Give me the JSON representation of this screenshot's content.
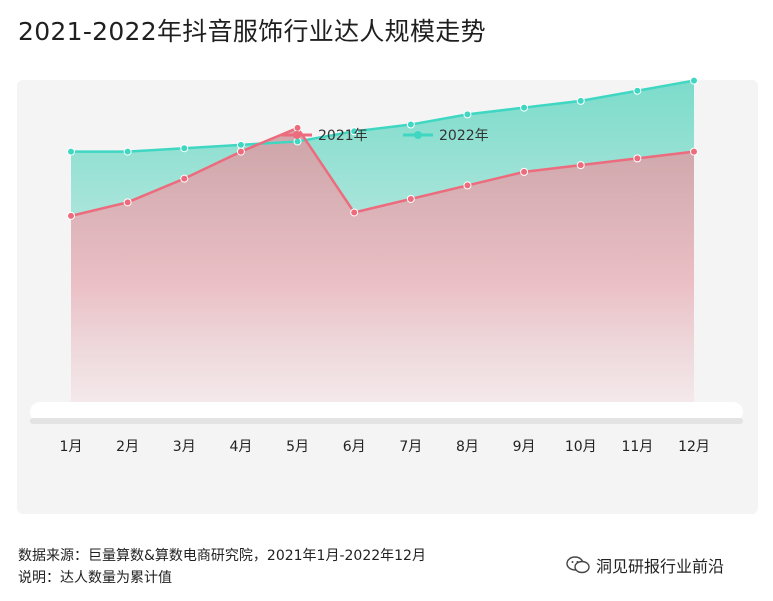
{
  "title": "2021-2022年抖音服饰行业达人规模走势",
  "footer": {
    "source": "数据来源：巨量算数&算数电商研究院，2021年1月-2022年12月",
    "note": "说明：达人数量为累计值",
    "brand": "洞见研报行业前沿"
  },
  "chart_data": {
    "type": "area",
    "title": "2021-2022年抖音服饰行业达人规模走势",
    "categories": [
      "1月",
      "2月",
      "3月",
      "4月",
      "5月",
      "6月",
      "7月",
      "8月",
      "9月",
      "10月",
      "11月",
      "12月"
    ],
    "series": [
      {
        "name": "2021年",
        "color": "#ec6b7d",
        "values": [
          58,
          62,
          69,
          77,
          84,
          59,
          63,
          67,
          71,
          73,
          75,
          77
        ]
      },
      {
        "name": "2022年",
        "color": "#3fd7c2",
        "values": [
          77,
          77,
          78,
          79,
          80,
          83,
          85,
          88,
          90,
          92,
          95,
          98
        ]
      }
    ],
    "ylim": [
      0,
      110
    ],
    "grid": false,
    "legend": "top-center",
    "axes_visible": {
      "y": false
    }
  }
}
